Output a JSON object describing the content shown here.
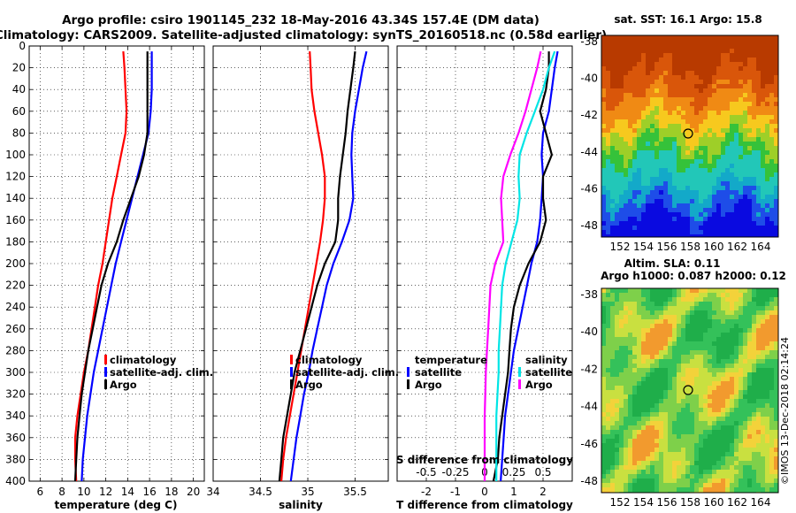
{
  "title": {
    "line1": "Argo profile: csiro 1901145_232 18-May-2016 43.34S 157.4E (DM data)",
    "line2": "Climatology: CARS2009. Satellite-adjusted climatology: synTS_20160518.nc (0.58d earlier)"
  },
  "credit": "©IMOS 13-Dec-2018 02:14:24",
  "sst_panel": {
    "title": "sat. SST: 16.1 Argo: 15.8",
    "lat_ticks": [
      "-38",
      "-40",
      "-42",
      "-44",
      "-46",
      "-48"
    ],
    "lon_ticks": [
      "152",
      "154",
      "156",
      "158",
      "160",
      "162",
      "164"
    ]
  },
  "sla_panel": {
    "title1": "Altim. SLA: 0.11",
    "title2": "Argo h1000: 0.087 h2000: 0.12",
    "lat_ticks": [
      "-38",
      "-40",
      "-42",
      "-44",
      "-46",
      "-48"
    ],
    "lon_ticks": [
      "152",
      "154",
      "156",
      "158",
      "160",
      "162",
      "164"
    ]
  },
  "colors": {
    "climatology": "#ff0000",
    "satellite": "#0000ff",
    "argo": "#000000",
    "s_sat": "#00e5e5",
    "s_clim": "#ff00ff"
  },
  "chart_data": [
    {
      "type": "line",
      "panel": "temperature",
      "xlabel": "temperature (deg C)",
      "ylabel": "",
      "xlim": [
        5,
        21
      ],
      "ylim": [
        400,
        0
      ],
      "xticks": [
        6,
        8,
        10,
        12,
        14,
        16,
        18,
        20
      ],
      "yticks": [
        0,
        20,
        40,
        60,
        80,
        100,
        120,
        140,
        160,
        180,
        200,
        220,
        240,
        260,
        280,
        300,
        320,
        340,
        360,
        380,
        400
      ],
      "legend": [
        "climatology",
        "satellite-adj. clim.",
        "Argo"
      ],
      "series": [
        {
          "name": "climatology",
          "color": "#ff0000",
          "x": [
            13.6,
            13.7,
            13.8,
            13.9,
            13.8,
            13.4,
            13.0,
            12.6,
            12.3,
            12.0,
            11.7,
            11.3,
            11.0,
            10.7,
            10.4,
            10.0,
            9.7,
            9.4,
            9.2,
            9.2,
            9.3
          ],
          "y": [
            5,
            20,
            40,
            60,
            80,
            100,
            120,
            140,
            160,
            180,
            200,
            220,
            240,
            260,
            280,
            300,
            320,
            340,
            360,
            380,
            400
          ]
        },
        {
          "name": "satellite-adj. clim.",
          "color": "#0000ff",
          "x": [
            16.2,
            16.2,
            16.2,
            16.1,
            15.9,
            15.4,
            14.9,
            14.4,
            13.9,
            13.4,
            12.9,
            12.5,
            12.1,
            11.7,
            11.3,
            10.9,
            10.6,
            10.3,
            10.1,
            9.9,
            9.8
          ],
          "y": [
            5,
            20,
            40,
            60,
            80,
            100,
            120,
            140,
            160,
            180,
            200,
            220,
            240,
            260,
            280,
            300,
            320,
            340,
            360,
            380,
            400
          ]
        },
        {
          "name": "Argo",
          "color": "#000000",
          "x": [
            15.8,
            15.8,
            15.8,
            15.8,
            15.8,
            15.5,
            15.0,
            14.3,
            13.6,
            13.0,
            12.2,
            11.6,
            11.2,
            10.8,
            10.4,
            10.1,
            9.8,
            9.6,
            9.4,
            9.3,
            9.2
          ],
          "y": [
            5,
            20,
            40,
            60,
            80,
            100,
            120,
            140,
            160,
            180,
            200,
            220,
            240,
            260,
            280,
            300,
            320,
            340,
            360,
            380,
            400
          ]
        }
      ]
    },
    {
      "type": "line",
      "panel": "salinity",
      "xlabel": "salinity",
      "ylabel": "",
      "xlim": [
        34,
        35.85
      ],
      "ylim": [
        400,
        0
      ],
      "xticks": [
        34,
        34.5,
        35,
        35.5
      ],
      "xticklabels": [
        "34",
        "34.5",
        "35",
        "35.5"
      ],
      "yticks": [
        0,
        20,
        40,
        60,
        80,
        100,
        120,
        140,
        160,
        180,
        200,
        220,
        240,
        260,
        280,
        300,
        320,
        340,
        360,
        380,
        400
      ],
      "legend": [
        "climatology",
        "satellite-adj. clim.",
        "Argo"
      ],
      "series": [
        {
          "name": "climatology",
          "color": "#ff0000",
          "x": [
            35.02,
            35.03,
            35.04,
            35.07,
            35.11,
            35.15,
            35.18,
            35.18,
            35.16,
            35.13,
            35.09,
            35.05,
            35.01,
            34.97,
            34.93,
            34.89,
            34.85,
            34.81,
            34.77,
            34.74,
            34.72
          ],
          "y": [
            5,
            20,
            40,
            60,
            80,
            100,
            120,
            140,
            160,
            180,
            200,
            220,
            240,
            260,
            280,
            300,
            320,
            340,
            360,
            380,
            400
          ]
        },
        {
          "name": "satellite-adj. clim.",
          "color": "#0000ff",
          "x": [
            35.62,
            35.58,
            35.54,
            35.5,
            35.47,
            35.46,
            35.47,
            35.48,
            35.44,
            35.36,
            35.27,
            35.2,
            35.15,
            35.1,
            35.05,
            35.01,
            34.96,
            34.92,
            34.88,
            34.85,
            34.82
          ],
          "y": [
            5,
            20,
            40,
            60,
            80,
            100,
            120,
            140,
            160,
            180,
            200,
            220,
            240,
            260,
            280,
            300,
            320,
            340,
            360,
            380,
            400
          ]
        },
        {
          "name": "Argo",
          "color": "#000000",
          "x": [
            35.5,
            35.48,
            35.45,
            35.42,
            35.4,
            35.37,
            35.34,
            35.32,
            35.32,
            35.29,
            35.18,
            35.1,
            35.04,
            34.98,
            34.92,
            34.86,
            34.82,
            34.78,
            34.74,
            34.72,
            34.7
          ],
          "y": [
            5,
            20,
            40,
            60,
            80,
            100,
            120,
            140,
            160,
            180,
            200,
            220,
            240,
            260,
            280,
            300,
            320,
            340,
            360,
            380,
            400
          ]
        }
      ]
    },
    {
      "type": "line",
      "panel": "difference",
      "xlabel": "T difference from climatology",
      "x2label": "S difference from climatology",
      "xlim": [
        -3,
        3
      ],
      "ylim": [
        400,
        0
      ],
      "xticks": [
        -2,
        -1,
        0,
        1,
        2
      ],
      "x2ticks": [
        -0.5,
        -0.25,
        0,
        0.25,
        0.5
      ],
      "x2lim": [
        -0.75,
        0.75
      ],
      "yticks": [
        0,
        20,
        40,
        60,
        80,
        100,
        120,
        140,
        160,
        180,
        200,
        220,
        240,
        260,
        280,
        300,
        320,
        340,
        360,
        380,
        400
      ],
      "legend_temperature": {
        "header": "temperature",
        "items": [
          "satellite",
          "Argo"
        ]
      },
      "legend_salinity": {
        "header": "salinity",
        "items": [
          "satellite",
          "Argo"
        ]
      },
      "series": [
        {
          "name": "T satellite",
          "color": "#0000ff",
          "x": [
            2.5,
            2.4,
            2.3,
            2.2,
            2.0,
            1.95,
            2.0,
            1.95,
            1.9,
            1.8,
            1.6,
            1.45,
            1.3,
            1.15,
            1.0,
            0.9,
            0.8,
            0.7,
            0.65,
            0.6,
            0.55
          ],
          "y": [
            5,
            20,
            40,
            60,
            80,
            100,
            120,
            140,
            160,
            180,
            200,
            220,
            240,
            260,
            280,
            300,
            320,
            340,
            360,
            380,
            400
          ]
        },
        {
          "name": "T Argo",
          "color": "#000000",
          "x": [
            2.2,
            2.2,
            2.1,
            1.9,
            2.1,
            2.3,
            2.0,
            2.0,
            2.1,
            1.9,
            1.5,
            1.2,
            1.0,
            0.9,
            0.85,
            0.8,
            0.7,
            0.6,
            0.5,
            0.45,
            0.3
          ],
          "y": [
            5,
            20,
            40,
            60,
            80,
            100,
            120,
            140,
            160,
            180,
            200,
            220,
            240,
            260,
            280,
            300,
            320,
            340,
            360,
            380,
            400
          ]
        },
        {
          "name": "S satellite",
          "color": "#00e5e5",
          "x": [
            0.6,
            0.55,
            0.5,
            0.43,
            0.36,
            0.3,
            0.29,
            0.3,
            0.28,
            0.23,
            0.18,
            0.15,
            0.14,
            0.13,
            0.12,
            0.12,
            0.11,
            0.1,
            0.1,
            0.1,
            0.1
          ],
          "y": [
            5,
            20,
            40,
            60,
            80,
            100,
            120,
            140,
            160,
            180,
            200,
            220,
            240,
            260,
            280,
            300,
            320,
            340,
            360,
            380,
            400
          ]
        },
        {
          "name": "S Argo",
          "color": "#ff00ff",
          "x": [
            0.48,
            0.45,
            0.4,
            0.35,
            0.29,
            0.22,
            0.16,
            0.14,
            0.15,
            0.16,
            0.09,
            0.05,
            0.04,
            0.03,
            0.02,
            0.01,
            0.005,
            0.0,
            0.0,
            0.0,
            0.0
          ],
          "y": [
            5,
            20,
            40,
            60,
            80,
            100,
            120,
            140,
            160,
            180,
            200,
            220,
            240,
            260,
            280,
            300,
            320,
            340,
            360,
            380,
            400
          ]
        }
      ]
    }
  ]
}
